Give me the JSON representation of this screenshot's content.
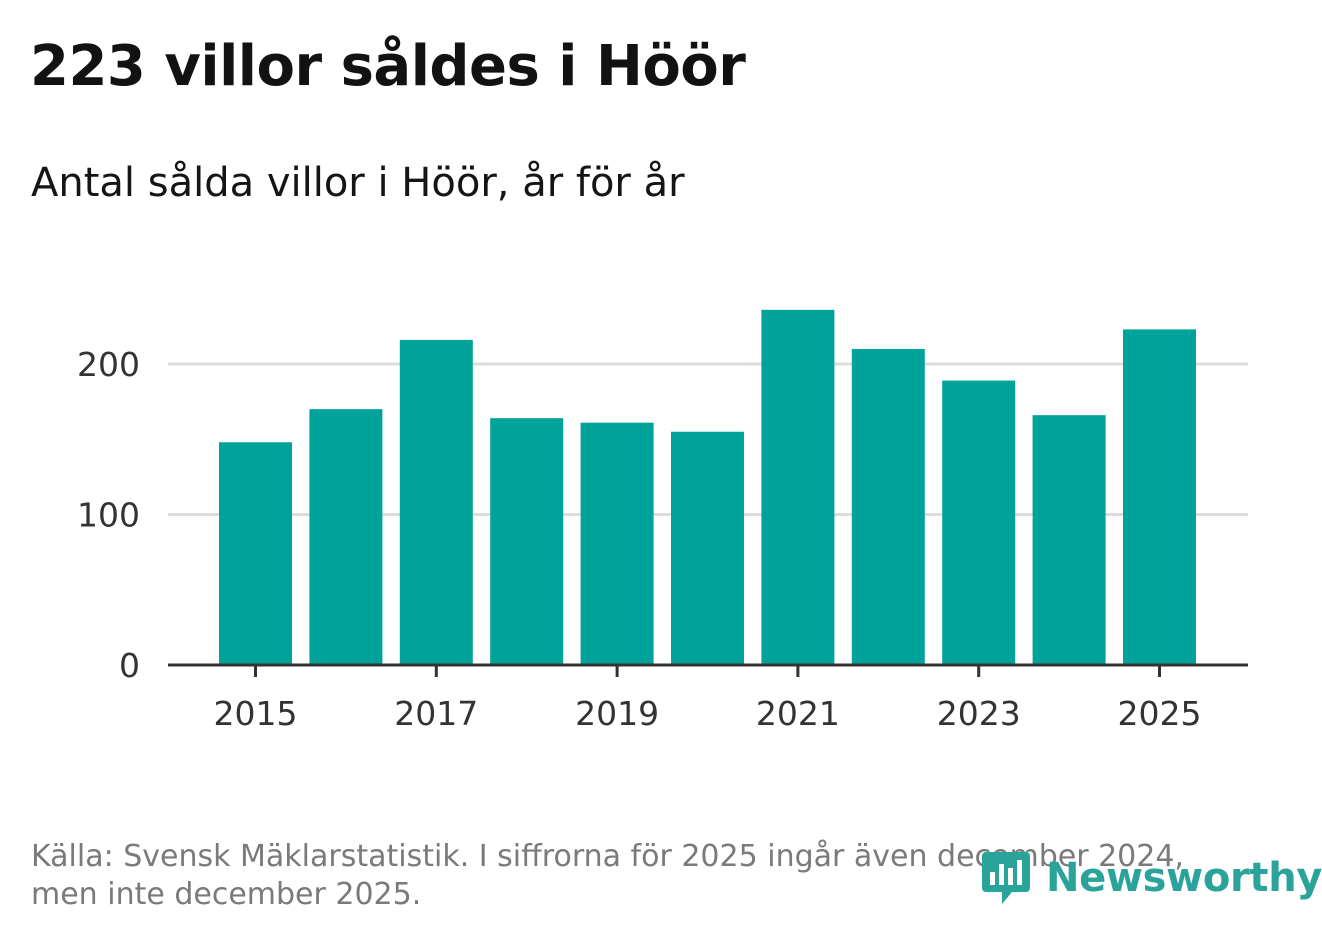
{
  "header": {
    "title": "223 villor såldes i Höör",
    "subtitle": "Antal sålda villor i Höör, år för år"
  },
  "footer": {
    "source_line_1": "Källa: Svensk Mäklarstatistik. I siffrorna för 2025 ingår även december 2024,",
    "source_line_2": "men inte december 2025."
  },
  "logo": {
    "name": "Newsworthy",
    "icon": "newsworthy-logo-icon",
    "color": "#2aa39a"
  },
  "colors": {
    "bar": "#00a39a",
    "grid": "#dddddd",
    "axis": "#333333"
  },
  "chart_data": {
    "type": "bar",
    "title": "223 villor såldes i Höör",
    "subtitle": "Antal sålda villor i Höör, år för år",
    "categories": [
      "2015",
      "2016",
      "2017",
      "2018",
      "2019",
      "2020",
      "2021",
      "2022",
      "2023",
      "2024",
      "2025"
    ],
    "values": [
      148,
      170,
      216,
      164,
      161,
      155,
      236,
      210,
      189,
      166,
      223
    ],
    "x_tick_labels": [
      "2015",
      "2017",
      "2019",
      "2021",
      "2023",
      "2025"
    ],
    "y_ticks": [
      0,
      100,
      200
    ],
    "ylim": [
      0,
      250
    ],
    "xlabel": "",
    "ylabel": "",
    "grid": true,
    "legend": "none"
  }
}
